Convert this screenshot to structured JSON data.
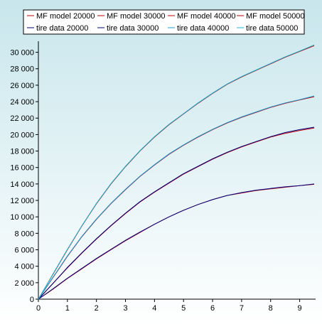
{
  "chart_data": {
    "type": "line",
    "title": "",
    "xlabel": "",
    "ylabel": "",
    "xlim": [
      0,
      9.5
    ],
    "ylim": [
      0,
      31000
    ],
    "grid": false,
    "legend_placement": "top",
    "x_ticks": [
      0,
      1,
      2,
      3,
      4,
      5,
      6,
      7,
      8,
      9
    ],
    "y_ticks": [
      0,
      2000,
      4000,
      6000,
      8000,
      10000,
      12000,
      14000,
      16000,
      18000,
      20000,
      22000,
      24000,
      26000,
      28000,
      30000
    ],
    "x_tick_labels": [
      "0",
      "1",
      "2",
      "3",
      "4",
      "5",
      "6",
      "7",
      "8",
      "9"
    ],
    "y_tick_labels": [
      "0",
      "2 000",
      "4 000",
      "6 000",
      "8 000",
      "10 000",
      "12 000",
      "14 000",
      "16 000",
      "18 000",
      "20 000",
      "22 000",
      "24 000",
      "26 000",
      "28 000",
      "30 000"
    ],
    "x": [
      0,
      0.5,
      1,
      1.5,
      2,
      2.5,
      3,
      3.5,
      4,
      4.5,
      5,
      5.5,
      6,
      6.5,
      7,
      7.5,
      8,
      8.5,
      9,
      9.5
    ],
    "series": [
      {
        "name": "MF model 20000",
        "color": "#c00000",
        "values": [
          0,
          1200,
          2500,
          3700,
          4900,
          6000,
          7100,
          8100,
          9100,
          10000,
          10800,
          11500,
          12100,
          12600,
          12900,
          13200,
          13400,
          13600,
          13800,
          13950
        ]
      },
      {
        "name": "MF model 30000",
        "color": "#c00000",
        "values": [
          0,
          1900,
          3800,
          5600,
          7300,
          8900,
          10400,
          11800,
          13000,
          14100,
          15200,
          16100,
          17000,
          17800,
          18500,
          19100,
          19700,
          20150,
          20500,
          20800
        ]
      },
      {
        "name": "MF model 40000",
        "color": "#c00000",
        "values": [
          0,
          2600,
          5200,
          7600,
          9700,
          11600,
          13300,
          14900,
          16300,
          17600,
          18700,
          19700,
          20600,
          21400,
          22100,
          22700,
          23300,
          23800,
          24200,
          24600
        ]
      },
      {
        "name": "MF model 50000",
        "color": "#c00000",
        "values": [
          0,
          3000,
          6000,
          8900,
          11600,
          14000,
          16100,
          18000,
          19700,
          21200,
          22500,
          23800,
          25000,
          26100,
          27000,
          27800,
          28600,
          29400,
          30100,
          30800
        ]
      },
      {
        "name": "tire data 20000",
        "color": "#000080",
        "values": [
          0,
          1250,
          2550,
          3750,
          4950,
          6050,
          7150,
          8150,
          9100,
          10000,
          10800,
          11500,
          12100,
          12600,
          12950,
          13250,
          13450,
          13650,
          13800,
          14000
        ]
      },
      {
        "name": "tire data 30000",
        "color": "#000080",
        "values": [
          0,
          1900,
          3850,
          5650,
          7350,
          8950,
          10450,
          11850,
          13050,
          14150,
          15250,
          16150,
          17050,
          17850,
          18550,
          19150,
          19750,
          20250,
          20600,
          20900
        ]
      },
      {
        "name": "tire data 40000",
        "color": "#1b9fd8",
        "values": [
          0,
          2650,
          5250,
          7650,
          9750,
          11650,
          13350,
          14950,
          16350,
          17650,
          18750,
          19750,
          20650,
          21450,
          22150,
          22750,
          23350,
          23850,
          24250,
          24700
        ]
      },
      {
        "name": "tire data 50000",
        "color": "#1bb8d8",
        "values": [
          0,
          3050,
          6050,
          8950,
          11650,
          14050,
          16150,
          18050,
          19750,
          21250,
          22550,
          23850,
          25050,
          26150,
          27050,
          27850,
          28650,
          29450,
          30150,
          30900
        ]
      }
    ]
  },
  "colors": {
    "background_top": "#c8e6ec",
    "background_bottom": "#ffffff",
    "legend_background": "#ffffff",
    "axis": "#000000"
  }
}
